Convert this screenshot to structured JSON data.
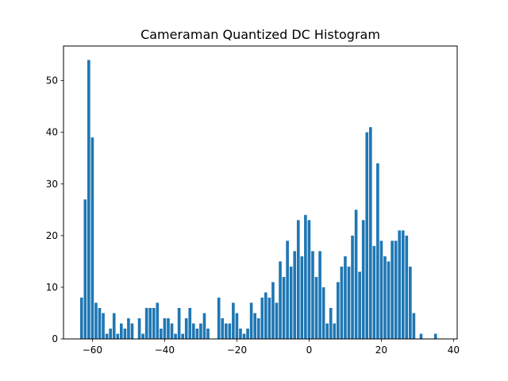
{
  "chart_data": {
    "type": "bar",
    "title": "Cameraman Quantized DC Histogram",
    "xlabel": "",
    "ylabel": "",
    "xlim": [
      -68,
      41
    ],
    "ylim": [
      0,
      56.7
    ],
    "xticks": [
      -60,
      -40,
      -20,
      0,
      20,
      40
    ],
    "yticks": [
      0,
      10,
      20,
      30,
      40,
      50
    ],
    "grid": false,
    "bar_color": "#1f77b4",
    "x": [
      -63,
      -62,
      -61,
      -60,
      -59,
      -58,
      -57,
      -56,
      -55,
      -54,
      -53,
      -52,
      -51,
      -50,
      -49,
      -47,
      -46,
      -45,
      -44,
      -43,
      -42,
      -41,
      -40,
      -39,
      -38,
      -37,
      -36,
      -35,
      -34,
      -33,
      -32,
      -31,
      -30,
      -29,
      -28,
      -25,
      -24,
      -23,
      -22,
      -21,
      -20,
      -19,
      -18,
      -17,
      -16,
      -15,
      -14,
      -13,
      -12,
      -11,
      -10,
      -9,
      -8,
      -7,
      -6,
      -5,
      -4,
      -3,
      -2,
      -1,
      0,
      1,
      2,
      3,
      4,
      5,
      6,
      7,
      8,
      9,
      10,
      11,
      12,
      13,
      14,
      15,
      16,
      17,
      18,
      19,
      20,
      21,
      22,
      23,
      24,
      25,
      26,
      27,
      28,
      29,
      31,
      35
    ],
    "values": [
      8,
      27,
      54,
      39,
      7,
      6,
      5,
      1,
      2,
      5,
      1,
      3,
      2,
      4,
      3,
      4,
      1,
      6,
      6,
      6,
      7,
      2,
      4,
      4,
      3,
      1,
      6,
      1,
      4,
      6,
      3,
      2,
      3,
      5,
      2,
      8,
      4,
      3,
      3,
      7,
      5,
      2,
      1,
      2,
      7,
      5,
      4,
      8,
      9,
      8,
      11,
      7,
      15,
      12,
      19,
      14,
      17,
      23,
      16,
      24,
      23,
      17,
      12,
      17,
      10,
      3,
      6,
      3,
      11,
      14,
      16,
      14,
      20,
      25,
      13,
      23,
      40,
      41,
      18,
      34,
      19,
      16,
      15,
      19,
      19,
      21,
      21,
      20,
      14,
      5,
      1,
      1
    ]
  }
}
